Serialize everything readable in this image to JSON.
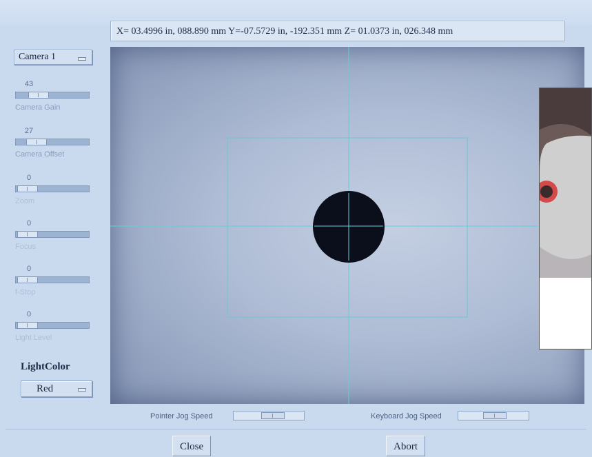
{
  "coordinates": {
    "readout": "X= 03.4996 in,  088.890 mm   Y=-07.5729 in, -192.351 mm   Z= 01.0373 in,  026.348 mm"
  },
  "camera_select": {
    "value": "Camera 1"
  },
  "sliders": [
    {
      "value": "43",
      "label": "Camera Gain",
      "level": 0.43,
      "enabled": true
    },
    {
      "value": "27",
      "label": "Camera Offset",
      "level": 0.27,
      "enabled": true
    },
    {
      "value": "0",
      "label": "Zoom",
      "level": 0.0,
      "enabled": false
    },
    {
      "value": "0",
      "label": "Focus",
      "level": 0.0,
      "enabled": false
    },
    {
      "value": "0",
      "label": "f-Stop",
      "level": 0.0,
      "enabled": false
    },
    {
      "value": "0",
      "label": "Light Level",
      "level": 0.0,
      "enabled": false
    }
  ],
  "light_color": {
    "label": "LightColor",
    "value": "Red"
  },
  "jog": {
    "pointer_label": "Pointer Jog Speed",
    "pointer_level": 0.6,
    "keyboard_label": "Keyboard Jog Speed",
    "keyboard_level": 0.55
  },
  "buttons": {
    "close": "Close",
    "abort": "Abort"
  },
  "colors": {
    "crosshair": "#5fd0d8",
    "target": "#0b0f1c",
    "panel": "#c9d9ee"
  }
}
